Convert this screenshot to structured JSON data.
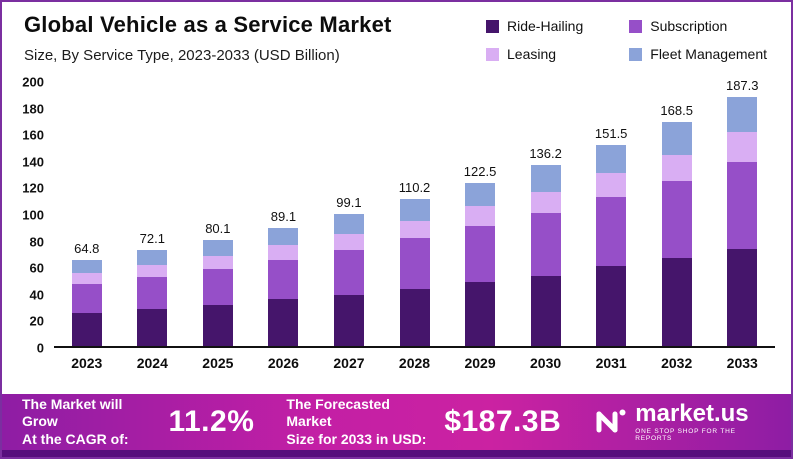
{
  "header": {
    "title": "Global Vehicle as a Service Market",
    "subtitle": "Size, By Service Type, 2023-2033 (USD Billion)"
  },
  "legend": [
    {
      "label": "Ride-Hailing",
      "color": "#45156b"
    },
    {
      "label": "Subscription",
      "color": "#964fc8"
    },
    {
      "label": "Leasing",
      "color": "#d9aef3"
    },
    {
      "label": "Fleet Management",
      "color": "#8ba3d9"
    }
  ],
  "chart_data": {
    "type": "bar",
    "stacked": true,
    "title": "Global Vehicle as a Service Market",
    "subtitle": "Size, By Service Type, 2023-2033 (USD Billion)",
    "xlabel": "",
    "ylabel": "USD Billion",
    "ylim": [
      0,
      200
    ],
    "yticks": [
      0,
      20,
      40,
      60,
      80,
      100,
      120,
      140,
      160,
      180,
      200
    ],
    "grid": false,
    "legend_position": "top-right",
    "categories": [
      "2023",
      "2024",
      "2025",
      "2026",
      "2027",
      "2028",
      "2029",
      "2030",
      "2031",
      "2032",
      "2033"
    ],
    "series": [
      {
        "name": "Ride-Hailing",
        "color": "#45156b",
        "values": [
          25,
          28,
          31,
          35,
          38,
          43,
          48,
          53,
          60,
          66,
          73
        ]
      },
      {
        "name": "Subscription",
        "color": "#964fc8",
        "values": [
          22,
          24,
          27,
          30,
          34,
          38,
          42,
          47,
          52,
          58,
          65
        ]
      },
      {
        "name": "Leasing",
        "color": "#d9aef3",
        "values": [
          8,
          9,
          10,
          11,
          12,
          13,
          15,
          16,
          18,
          20,
          23
        ]
      },
      {
        "name": "Fleet Management",
        "color": "#8ba3d9",
        "values": [
          9.8,
          11.1,
          12.1,
          13.1,
          15.1,
          16.2,
          17.5,
          20.2,
          21.5,
          24.5,
          26.3
        ]
      }
    ],
    "totals": [
      "64.8",
      "72.1",
      "80.1",
      "89.1",
      "99.1",
      "110.2",
      "122.5",
      "136.2",
      "151.5",
      "168.5",
      "187.3"
    ]
  },
  "footer": {
    "cagr_label_line1": "The Market will Grow",
    "cagr_label_line2": "At the CAGR of:",
    "cagr_value": "11.2%",
    "forecast_label_line1": "The Forecasted Market",
    "forecast_label_line2": "Size for 2033 in USD:",
    "forecast_value": "$187.3B",
    "brand_name": "market.us",
    "brand_tagline": "ONE STOP SHOP FOR THE REPORTS"
  }
}
